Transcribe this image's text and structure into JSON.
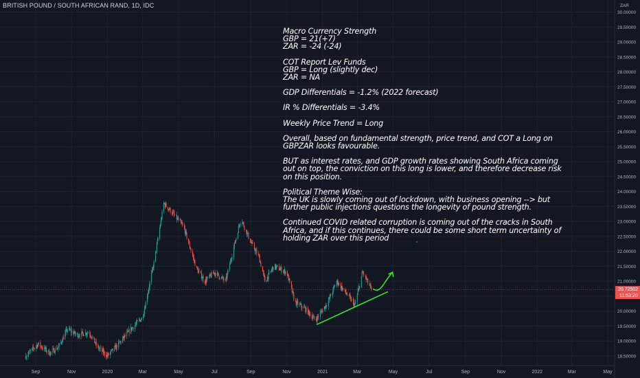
{
  "header": {
    "symbol": "BRITISH POUND / SOUTH AFRICAN RAND, 1D, IDC"
  },
  "price_tag": {
    "value": "20.72502",
    "countdown": "11:53:20"
  },
  "annotation": {
    "blocks": [
      [
        "Macro Currency Strength",
        "GBP = 21(+7)",
        "ZAR = -24 (-24)"
      ],
      [
        "COT Report Lev Funds",
        "GBP = Long (slightly dec)",
        "ZAR = NA"
      ],
      [
        "GDP Differentials = -1.2% (2022 forecast)"
      ],
      [
        "IR % Differentials = -3.4%"
      ],
      [
        "Weekly Price Trend = Long"
      ],
      [
        "Overall, based on fundamental strength, price trend, and COT a Long on GBPZAR looks favourable."
      ],
      [
        "BUT as interest rates, and GDP growth rates showing South Africa coming out on top, the conviction on this long is lower, and therefore decrease risk on this position."
      ],
      [
        "Political Theme Wise:",
        "The UK is slowly coming out of lockdown, with business opening --> but further public injections questions the longevity of pound strength."
      ],
      [
        "Continued COVID related corruption is coming out of the cracks in South Africa, and if this continues, there could be some short term uncertainty of holding ZAR over this period"
      ]
    ]
  },
  "colors": {
    "background": "#131722",
    "up": "#26a69a",
    "down": "#ef5350",
    "drawing": "#39e61e",
    "price_line": "#ef5350",
    "text": "#b2b5be"
  },
  "chart_data": {
    "type": "candlestick",
    "title": "BRITISH POUND / SOUTH AFRICAN RAND, 1D, IDC",
    "y_unit": "ZAR",
    "ylim": [
      18.3,
      30.2
    ],
    "y_ticks": [
      "18.50000",
      "19.00000",
      "19.50000",
      "20.00000",
      "20.50000",
      "21.00000",
      "21.50000",
      "22.00000",
      "22.50000",
      "23.00000",
      "23.50000",
      "24.00000",
      "24.50000",
      "25.00000",
      "25.50000",
      "26.00000",
      "26.50000",
      "27.00000",
      "27.50000",
      "28.00000",
      "28.50000",
      "29.00000",
      "29.50000",
      "30.00000"
    ],
    "x_ticks": [
      "Sep",
      "Nov",
      "2020",
      "Mar",
      "May",
      "Jul",
      "Sep",
      "Nov",
      "2021",
      "Mar",
      "May",
      "Jul",
      "Sep",
      "Nov",
      "2022",
      "Mar",
      "May"
    ],
    "last_price": 20.72502,
    "path": [
      {
        "date": "2019-08-15",
        "value": 18.5
      },
      {
        "date": "2019-09-05",
        "value": 18.9
      },
      {
        "date": "2019-09-25",
        "value": 18.6
      },
      {
        "date": "2019-10-10",
        "value": 18.8
      },
      {
        "date": "2019-10-25",
        "value": 19.4
      },
      {
        "date": "2019-11-10",
        "value": 19.2
      },
      {
        "date": "2019-12-01",
        "value": 19.3
      },
      {
        "date": "2019-12-15",
        "value": 18.8
      },
      {
        "date": "2020-01-01",
        "value": 18.5
      },
      {
        "date": "2020-01-20",
        "value": 18.9
      },
      {
        "date": "2020-02-10",
        "value": 19.4
      },
      {
        "date": "2020-03-01",
        "value": 19.8
      },
      {
        "date": "2020-03-20",
        "value": 21.6
      },
      {
        "date": "2020-04-06",
        "value": 23.6
      },
      {
        "date": "2020-04-20",
        "value": 23.3
      },
      {
        "date": "2020-05-10",
        "value": 22.8
      },
      {
        "date": "2020-06-01",
        "value": 21.4
      },
      {
        "date": "2020-06-15",
        "value": 21.0
      },
      {
        "date": "2020-07-01",
        "value": 21.3
      },
      {
        "date": "2020-07-20",
        "value": 21.0
      },
      {
        "date": "2020-08-05",
        "value": 22.3
      },
      {
        "date": "2020-08-15",
        "value": 23.1
      },
      {
        "date": "2020-09-01",
        "value": 22.3
      },
      {
        "date": "2020-09-15",
        "value": 21.8
      },
      {
        "date": "2020-09-25",
        "value": 21.0
      },
      {
        "date": "2020-10-10",
        "value": 21.5
      },
      {
        "date": "2020-11-01",
        "value": 21.3
      },
      {
        "date": "2020-11-15",
        "value": 20.3
      },
      {
        "date": "2020-12-01",
        "value": 20.1
      },
      {
        "date": "2020-12-20",
        "value": 19.7
      },
      {
        "date": "2021-01-10",
        "value": 20.3
      },
      {
        "date": "2021-01-25",
        "value": 21.0
      },
      {
        "date": "2021-02-10",
        "value": 20.6
      },
      {
        "date": "2021-02-25",
        "value": 20.2
      },
      {
        "date": "2021-03-10",
        "value": 21.3
      },
      {
        "date": "2021-03-25",
        "value": 20.73
      }
    ],
    "drawings": [
      {
        "type": "trendline",
        "from": {
          "date": "2020-12-22",
          "value": 19.55
        },
        "to": {
          "date": "2021-04-22",
          "value": 20.65
        }
      },
      {
        "type": "arrow",
        "points": [
          {
            "date": "2021-03-28",
            "value": 20.75
          },
          {
            "date": "2021-04-05",
            "value": 20.6
          },
          {
            "date": "2021-04-15",
            "value": 20.9
          },
          {
            "date": "2021-04-30",
            "value": 21.3
          }
        ]
      }
    ]
  }
}
